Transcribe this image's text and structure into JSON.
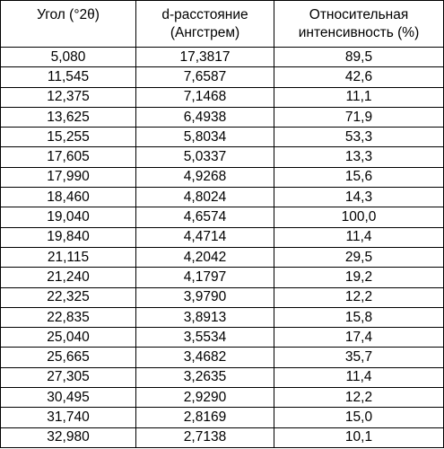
{
  "table": {
    "headers": [
      [
        "Угол (°2θ)"
      ],
      [
        "d-расстояние",
        "(Ангстрем)"
      ],
      [
        "Относительная",
        "интенсивность (%)"
      ]
    ],
    "rows": [
      [
        "5,080",
        "17,3817",
        "89,5"
      ],
      [
        "11,545",
        "7,6587",
        "42,6"
      ],
      [
        "12,375",
        "7,1468",
        "11,1"
      ],
      [
        "13,625",
        "6,4938",
        "71,9"
      ],
      [
        "15,255",
        "5,8034",
        "53,3"
      ],
      [
        "17,605",
        "5,0337",
        "13,3"
      ],
      [
        "17,990",
        "4,9268",
        "15,6"
      ],
      [
        "18,460",
        "4,8024",
        "14,3"
      ],
      [
        "19,040",
        "4,6574",
        "100,0"
      ],
      [
        "19,840",
        "4,4714",
        "11,4"
      ],
      [
        "21,115",
        "4,2042",
        "29,5"
      ],
      [
        "21,240",
        "4,1797",
        "19,2"
      ],
      [
        "22,325",
        "3,9790",
        "12,2"
      ],
      [
        "22,835",
        "3,8913",
        "15,8"
      ],
      [
        "25,040",
        "3,5534",
        "17,4"
      ],
      [
        "25,665",
        "3,4682",
        "35,7"
      ],
      [
        "27,305",
        "3,2635",
        "11,4"
      ],
      [
        "30,495",
        "2,9290",
        "12,2"
      ],
      [
        "31,740",
        "2,8169",
        "15,0"
      ],
      [
        "32,980",
        "2,7138",
        "10,1"
      ]
    ]
  }
}
